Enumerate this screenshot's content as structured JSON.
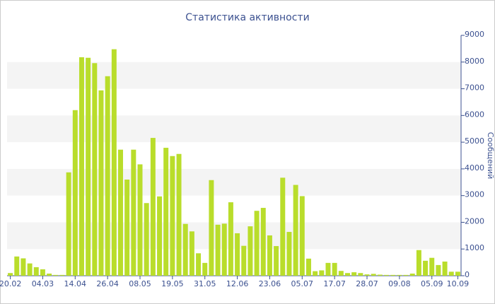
{
  "chart_data": {
    "type": "bar",
    "title": "Статистика активности",
    "y_label": "Сообщений",
    "categories": [
      "20.02",
      null,
      null,
      null,
      null,
      "04.03",
      null,
      null,
      null,
      null,
      "14.04",
      null,
      null,
      null,
      null,
      "26.04",
      null,
      null,
      null,
      null,
      "08.05",
      null,
      null,
      null,
      null,
      "19.05",
      null,
      null,
      null,
      null,
      "31.05",
      null,
      null,
      null,
      null,
      "12.06",
      null,
      null,
      null,
      null,
      "23.06",
      null,
      null,
      null,
      null,
      "05.07",
      null,
      null,
      null,
      null,
      "17.07",
      null,
      null,
      null,
      null,
      "28.07",
      null,
      null,
      null,
      null,
      "09.08",
      null,
      null,
      null,
      null,
      "05.09",
      null,
      null,
      null,
      "10.09"
    ],
    "values": [
      100,
      720,
      650,
      460,
      320,
      240,
      80,
      30,
      30,
      3870,
      6200,
      8180,
      8160,
      7960,
      6940,
      7470,
      8480,
      4720,
      3600,
      4720,
      4170,
      2720,
      5160,
      2970,
      4790,
      4480,
      4560,
      1940,
      1660,
      840,
      480,
      3580,
      1910,
      1950,
      2750,
      1590,
      1120,
      1850,
      2430,
      2540,
      1510,
      1110,
      3670,
      1640,
      3400,
      2980,
      640,
      170,
      200,
      480,
      480,
      180,
      100,
      130,
      100,
      50,
      70,
      40,
      30,
      30,
      30,
      30,
      80,
      960,
      560,
      670,
      400,
      530,
      150,
      150
    ],
    "color": "#b9dd2b",
    "ylim": [
      0,
      9000
    ],
    "yticks": [
      0,
      1000,
      2000,
      3000,
      4000,
      5000,
      6000,
      7000,
      8000,
      9000
    ],
    "grid": true
  }
}
